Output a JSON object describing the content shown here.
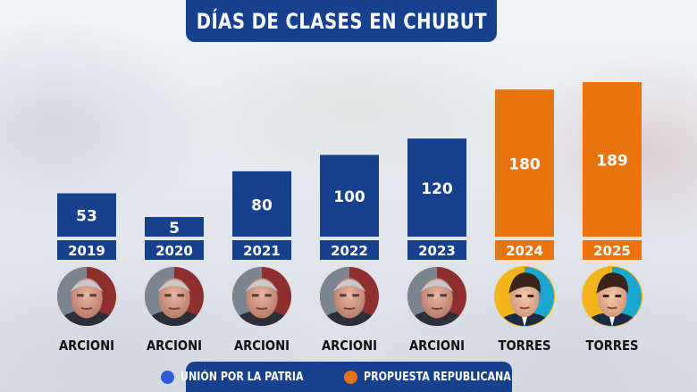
{
  "title": "DÍAS DE CLASES EN CHUBUT",
  "colors": {
    "union": "#17408f",
    "propuesta": "#e9740f",
    "text_dark": "#111111"
  },
  "legend": [
    {
      "label": "UNIÓN POR LA PATRIA",
      "color": "#2f5bd6",
      "dot": "blue-dot-icon"
    },
    {
      "label": "PROPUESTA REPUBLICANA",
      "color": "#e9740f",
      "dot": "orange-dot-icon"
    }
  ],
  "chart_data": {
    "type": "bar",
    "categories": [
      "2019",
      "2020",
      "2021",
      "2022",
      "2023",
      "2024",
      "2025"
    ],
    "values": [
      53,
      5,
      80,
      100,
      120,
      180,
      189
    ],
    "governors": [
      "ARCIONI",
      "ARCIONI",
      "ARCIONI",
      "ARCIONI",
      "ARCIONI",
      "TORRES",
      "TORRES"
    ],
    "party": [
      "union",
      "union",
      "union",
      "union",
      "union",
      "propuesta",
      "propuesta"
    ],
    "title": "DÍAS DE CLASES EN CHUBUT",
    "xlabel": "",
    "ylabel": "",
    "data_labels": true,
    "grid": false
  }
}
